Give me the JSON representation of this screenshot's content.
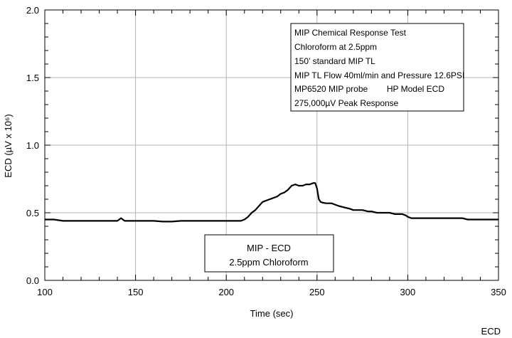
{
  "chart_data": {
    "type": "line",
    "title": "",
    "xlabel": "Time (sec)",
    "ylabel": "ECD (µV x 10⁶)",
    "xlim": [
      100,
      350
    ],
    "ylim": [
      0.0,
      2.0
    ],
    "x_ticks": [
      "100",
      "150",
      "200",
      "250",
      "300",
      "350"
    ],
    "y_ticks": [
      "0.0",
      "0.5",
      "1.0",
      "1.5",
      "2.0"
    ],
    "grid": true,
    "legend": "none",
    "series": [
      {
        "name": "",
        "color": "#000000",
        "x": [
          100,
          105,
          110,
          115,
          120,
          125,
          130,
          135,
          140,
          142,
          144,
          146,
          150,
          155,
          160,
          165,
          170,
          175,
          180,
          185,
          190,
          195,
          200,
          203,
          206,
          208,
          210,
          212,
          214,
          216,
          218,
          220,
          222,
          224,
          226,
          228,
          230,
          232,
          234,
          236,
          238,
          240,
          242,
          244,
          246,
          248,
          249,
          250,
          251,
          252,
          253,
          255,
          258,
          260,
          262,
          265,
          268,
          270,
          272,
          275,
          278,
          280,
          283,
          285,
          288,
          290,
          293,
          295,
          297,
          299,
          300,
          302,
          305,
          310,
          315,
          320,
          325,
          330,
          333,
          335,
          340,
          345,
          350
        ],
        "y": [
          0.45,
          0.45,
          0.44,
          0.44,
          0.44,
          0.44,
          0.44,
          0.44,
          0.44,
          0.46,
          0.44,
          0.44,
          0.44,
          0.44,
          0.44,
          0.435,
          0.435,
          0.44,
          0.44,
          0.44,
          0.44,
          0.44,
          0.44,
          0.44,
          0.44,
          0.44,
          0.45,
          0.47,
          0.5,
          0.52,
          0.55,
          0.58,
          0.59,
          0.6,
          0.61,
          0.62,
          0.64,
          0.65,
          0.67,
          0.7,
          0.71,
          0.7,
          0.7,
          0.71,
          0.71,
          0.72,
          0.72,
          0.68,
          0.6,
          0.58,
          0.575,
          0.57,
          0.57,
          0.56,
          0.55,
          0.54,
          0.53,
          0.52,
          0.52,
          0.52,
          0.51,
          0.51,
          0.5,
          0.5,
          0.5,
          0.5,
          0.49,
          0.49,
          0.49,
          0.48,
          0.47,
          0.46,
          0.46,
          0.46,
          0.46,
          0.46,
          0.46,
          0.46,
          0.45,
          0.45,
          0.45,
          0.45,
          0.45
        ]
      }
    ],
    "annotations": [
      "MIP Chemical Response Test",
      "Chloroform at 2.5ppm",
      "150’ standard MIP TL",
      "MIP TL Flow 40ml/min and Pressure 12.6PSI",
      "MP6520 MIP probe        HP Model ECD",
      "275,000µV Peak Response"
    ],
    "label_box": [
      "MIP - ECD",
      "2.5ppm Chloroform"
    ]
  },
  "caption": "ECD"
}
